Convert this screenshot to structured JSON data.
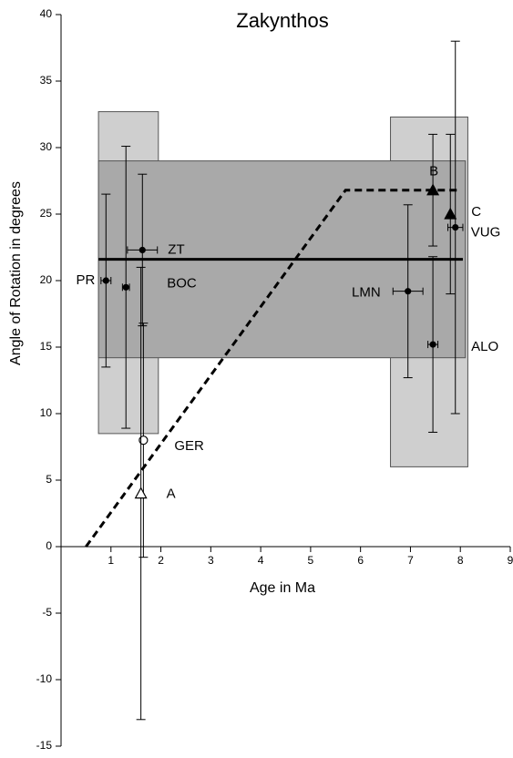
{
  "chart_data": {
    "type": "scatter",
    "title": "Zakynthos",
    "x_label": "Age in Ma",
    "y_label": "Angle of Rotation in degrees",
    "xlim": [
      0,
      9
    ],
    "ylim": [
      -15,
      40
    ],
    "xticks": [
      1,
      2,
      3,
      4,
      5,
      6,
      7,
      8,
      9
    ],
    "yticks": [
      -15,
      -10,
      -5,
      0,
      5,
      10,
      15,
      20,
      25,
      30,
      35,
      40
    ],
    "regions": [
      {
        "x": [
          0.75,
          1.95
        ],
        "y": [
          8.5,
          32.7
        ],
        "color": "#cfcfcf"
      },
      {
        "x": [
          6.6,
          8.15
        ],
        "y": [
          6,
          32.3
        ],
        "color": "#cfcfcf"
      },
      {
        "x": [
          0.75,
          8.1
        ],
        "y": [
          14.2,
          29
        ],
        "color": "#a9a9a9"
      }
    ],
    "mean_line": {
      "x": [
        0.75,
        8.05
      ],
      "y": [
        21.6,
        21.6
      ]
    },
    "model_line": {
      "x": [
        0.5,
        5.7,
        8
      ],
      "y": [
        0,
        26.8,
        26.8
      ]
    },
    "points": [
      {
        "label": "PR",
        "x": 0.9,
        "y": 20,
        "xerr": 0.1,
        "yerr": 6.5,
        "marker": "filled-circle"
      },
      {
        "label": "BOC",
        "x": 1.3,
        "y": 19.5,
        "xerr": 0.07,
        "yerr": 10.6,
        "marker": "filled-circle"
      },
      {
        "label": "ZT",
        "x": 1.63,
        "y": 22.3,
        "xerr": 0.3,
        "yerr": 5.7,
        "marker": "filled-circle"
      },
      {
        "label": "GER",
        "x": 1.65,
        "y": 8,
        "xerr": null,
        "yerr": 8.8,
        "marker": "open-circle"
      },
      {
        "label": "A",
        "x": 1.6,
        "y": 4,
        "xerr": null,
        "yerr": 17,
        "marker": "open-triangle"
      },
      {
        "label": "B",
        "x": 7.45,
        "y": 26.8,
        "xerr": null,
        "yerr": 4.2,
        "marker": "filled-triangle"
      },
      {
        "label": "C",
        "x": 7.8,
        "y": 25,
        "xerr": null,
        "yerr": 6,
        "marker": "filled-triangle"
      },
      {
        "label": "LMN",
        "x": 6.95,
        "y": 19.2,
        "xerr": 0.3,
        "yerr": 6.5,
        "marker": "filled-circle"
      },
      {
        "label": "VUG",
        "x": 7.9,
        "y": 24,
        "xerr": 0.15,
        "yerr": 14,
        "marker": "filled-circle"
      },
      {
        "label": "ALO",
        "x": 7.45,
        "y": 15.2,
        "xerr": 0.1,
        "yerr": 6.6,
        "marker": "filled-circle"
      }
    ]
  }
}
